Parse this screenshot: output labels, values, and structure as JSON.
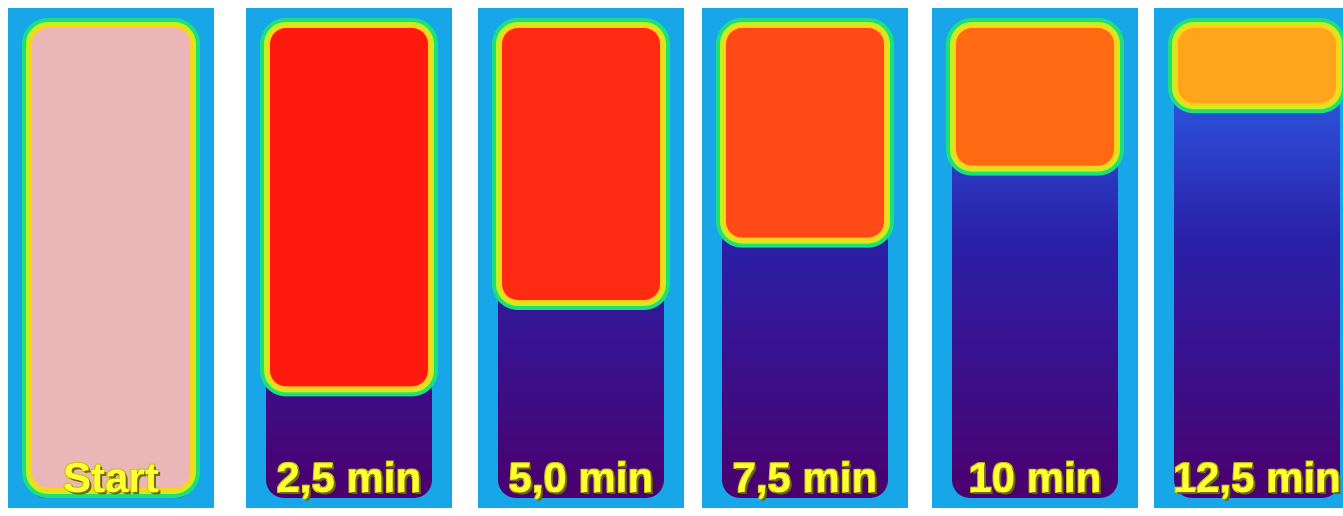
{
  "panels": [
    {
      "label": "Start",
      "hot_fraction": 1.0,
      "hot_color": "#eab6b8"
    },
    {
      "label": "2,5 min",
      "hot_fraction": 0.78,
      "hot_color": "#ff1a10"
    },
    {
      "label": "5,0 min",
      "hot_fraction": 0.6,
      "hot_color": "#ff2a12"
    },
    {
      "label": "7,5 min",
      "hot_fraction": 0.47,
      "hot_color": "#ff4a18"
    },
    {
      "label": "10 min",
      "hot_fraction": 0.32,
      "hot_color": "#ff6a12"
    },
    {
      "label": "12,5 min",
      "hot_fraction": 0.19,
      "hot_color": "#ffa51c"
    }
  ],
  "colors": {
    "edge_cold": "#1ea0ff",
    "cold_mid": "#2a20a8",
    "cold_bottom": "#4a006e",
    "caption": "#ffff33"
  }
}
